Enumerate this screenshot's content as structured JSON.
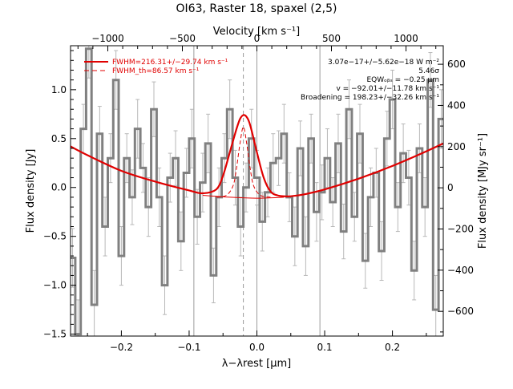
{
  "chart_data": {
    "type": "line",
    "title": "OI63, Raster 18, spaxel (2,5)",
    "xlabel": "λ−λrest [μm]",
    "ylabel": "Flux density [Jy]",
    "top_xlabel": "Velocity [km s⁻¹]",
    "right_ylabel": "Flux density [MJy sr⁻¹]",
    "xlim": [
      -0.275,
      0.275
    ],
    "ylim": [
      -1.52,
      1.45
    ],
    "top_xlim": [
      -1250,
      1250
    ],
    "right_ylim": [
      -720,
      690
    ],
    "x_ticks": [
      -0.2,
      -0.1,
      0.0,
      0.1,
      0.2
    ],
    "x_tick_labels": [
      "−0.2",
      "−0.1",
      "0.0",
      "0.1",
      "0.2"
    ],
    "y_ticks": [
      -1.5,
      -1.0,
      -0.5,
      0.0,
      0.5,
      1.0
    ],
    "y_tick_labels": [
      "−1.5",
      "−1.0",
      "−0.5",
      "0.0",
      "0.5",
      "1.0"
    ],
    "top_ticks": [
      -1000,
      -500,
      0,
      500,
      1000
    ],
    "top_tick_labels": [
      "−1000",
      "−500",
      "0",
      "500",
      "1000"
    ],
    "right_ticks": [
      -600,
      -400,
      -200,
      0,
      200,
      400,
      600
    ],
    "right_tick_labels": [
      "−600",
      "−400",
      "−200",
      "0",
      "200",
      "400",
      "600"
    ],
    "vlines_gray": [
      -0.093,
      0.0,
      0.093
    ],
    "vline_dashed": -0.02,
    "legend": [
      {
        "label": "FWHM=216.31+/−29.74 km s⁻¹",
        "style": "solid",
        "color": "#e00000"
      },
      {
        "label": "FWHM_th=86.57 km s⁻¹",
        "style": "dashed",
        "color": "#e00000"
      }
    ],
    "annotations": [
      "3.07e−17+/−5.62e−18 W m⁻²",
      "5.46σ",
      "EQWₒᵦₛ = −0.25 μm",
      "v = −92.01+/−11.78 km s⁻¹",
      "Broadening = 198.23+/−32.26 km s⁻¹"
    ],
    "series": [
      {
        "kind": "data",
        "color": "#808080",
        "x": [
          -0.272,
          -0.264,
          -0.256,
          -0.248,
          -0.24,
          -0.232,
          -0.224,
          -0.216,
          -0.208,
          -0.2,
          -0.192,
          -0.184,
          -0.176,
          -0.168,
          -0.16,
          -0.152,
          -0.144,
          -0.136,
          -0.128,
          -0.12,
          -0.112,
          -0.104,
          -0.096,
          -0.088,
          -0.08,
          -0.072,
          -0.064,
          -0.056,
          -0.048,
          -0.04,
          -0.032,
          -0.024,
          -0.016,
          -0.008,
          0.0,
          0.008,
          0.016,
          0.024,
          0.032,
          0.04,
          0.048,
          0.056,
          0.064,
          0.072,
          0.08,
          0.088,
          0.096,
          0.104,
          0.112,
          0.12,
          0.128,
          0.136,
          0.144,
          0.152,
          0.16,
          0.168,
          0.176,
          0.184,
          0.192,
          0.2,
          0.208,
          0.216,
          0.224,
          0.232,
          0.24,
          0.248,
          0.256,
          0.264,
          0.272
        ],
        "y": [
          -0.72,
          -1.5,
          0.6,
          1.42,
          -1.2,
          0.55,
          -0.4,
          0.3,
          1.1,
          -0.7,
          0.3,
          -0.1,
          0.6,
          0.2,
          -0.2,
          0.8,
          -0.1,
          -1.0,
          0.1,
          0.3,
          -0.55,
          0.15,
          0.5,
          -0.3,
          0.05,
          0.45,
          -0.9,
          -0.1,
          0.3,
          0.8,
          0.1,
          -0.4,
          0.0,
          0.5,
          0.1,
          -0.35,
          -0.05,
          0.25,
          0.3,
          0.55,
          -0.1,
          -0.5,
          0.4,
          -0.6,
          0.5,
          -0.25,
          -0.05,
          0.3,
          -0.15,
          0.45,
          -0.45,
          0.8,
          -0.3,
          0.55,
          -0.75,
          -0.1,
          0.15,
          -0.65,
          0.5,
          0.9,
          -0.2,
          0.35,
          0.1,
          -0.85,
          0.4,
          -0.2,
          1.1,
          -1.25,
          0.7
        ],
        "err": [
          0.3,
          0.35,
          0.25,
          0.3,
          0.35,
          0.28,
          0.3,
          0.25,
          0.3,
          0.3,
          0.25,
          0.28,
          0.3,
          0.25,
          0.3,
          0.28,
          0.3,
          0.3,
          0.25,
          0.28,
          0.3,
          0.25,
          0.3,
          0.28,
          0.3,
          0.3,
          0.28,
          0.3,
          0.25,
          0.3,
          0.28,
          0.3,
          0.25,
          0.3,
          0.28,
          0.3,
          0.25,
          0.3,
          0.28,
          0.3,
          0.25,
          0.3,
          0.28,
          0.3,
          0.25,
          0.3,
          0.28,
          0.3,
          0.25,
          0.3,
          0.28,
          0.3,
          0.25,
          0.3,
          0.28,
          0.3,
          0.25,
          0.3,
          0.28,
          0.3,
          0.25,
          0.3,
          0.28,
          0.3,
          0.25,
          0.3,
          0.28,
          0.35,
          0.3
        ]
      },
      {
        "kind": "fit",
        "style": "solid",
        "color": "#e00000",
        "x": [
          -0.275,
          -0.25,
          -0.2,
          -0.15,
          -0.1,
          -0.08,
          -0.06,
          -0.05,
          -0.04,
          -0.03,
          -0.025,
          -0.02,
          -0.015,
          -0.01,
          0.0,
          0.01,
          0.02,
          0.03,
          0.04,
          0.05,
          0.07,
          0.1,
          0.15,
          0.2,
          0.25,
          0.275
        ],
        "y": [
          0.42,
          0.33,
          0.17,
          0.06,
          -0.03,
          -0.06,
          -0.02,
          0.12,
          0.36,
          0.6,
          0.7,
          0.74,
          0.72,
          0.64,
          0.36,
          0.1,
          -0.04,
          -0.08,
          -0.09,
          -0.09,
          -0.07,
          -0.02,
          0.09,
          0.22,
          0.37,
          0.45
        ]
      },
      {
        "kind": "thermal",
        "style": "dashed",
        "color": "#e00000",
        "x": [
          -0.06,
          -0.045,
          -0.035,
          -0.03,
          -0.025,
          -0.02,
          -0.015,
          -0.01,
          -0.005,
          0.005,
          0.02
        ],
        "y": [
          -0.1,
          -0.08,
          0.02,
          0.2,
          0.45,
          0.62,
          0.45,
          0.2,
          0.02,
          -0.08,
          -0.1
        ]
      },
      {
        "kind": "baseline",
        "style": "solid",
        "color": "#e00000",
        "x": [
          -0.08,
          -0.04,
          0.0,
          0.04
        ],
        "y": [
          -0.08,
          -0.1,
          -0.11,
          -0.1
        ]
      }
    ]
  }
}
